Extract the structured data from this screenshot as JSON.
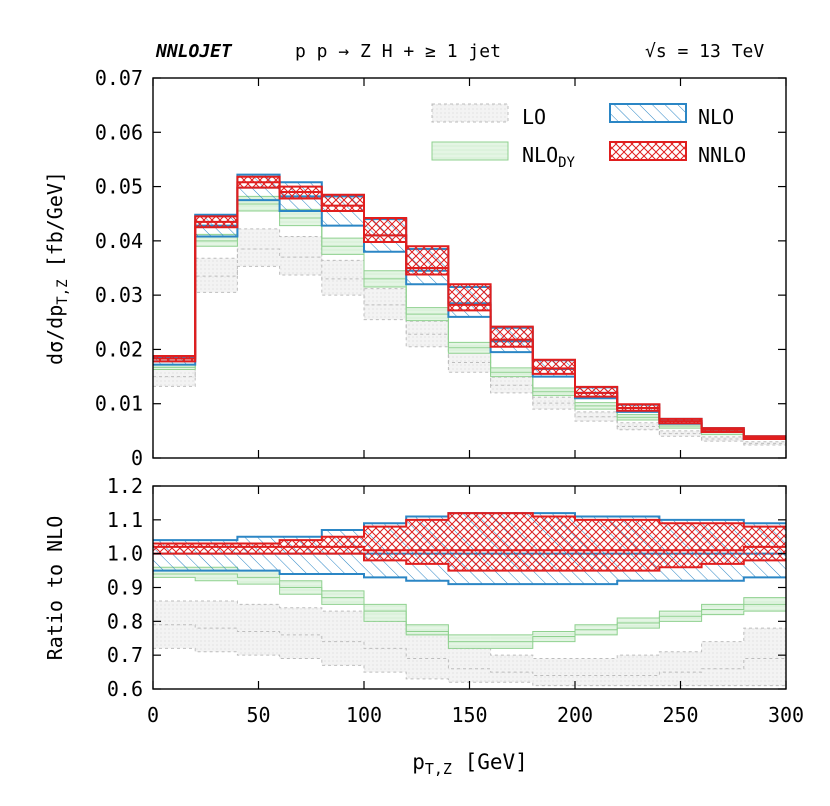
{
  "header": {
    "brand": "NNLOJET",
    "process": "p p → Z H + ≥ 1 jet",
    "energy": "√s = 13 TeV"
  },
  "colors": {
    "LO": "#bdbdbd",
    "LO_fill": "#f0f0f0",
    "NLO_DY": "#8fd18f",
    "NLO_DY_fill": "#e2f4e2",
    "NLO": "#2b86c5",
    "NNLO": "#e01e1e"
  },
  "chart_data": [
    {
      "type": "area",
      "name": "main",
      "xlabel_main": "p",
      "xlabel_sub": "T,Z",
      "xlabel_unit": "[GeV]",
      "ylabel_main": "dσ/dp",
      "ylabel_sub": "T,Z",
      "ylabel_unit": "[fb/GeV]",
      "xlim": [
        0,
        300
      ],
      "ylim": [
        0,
        0.07
      ],
      "xticks": [
        "0",
        "50",
        "100",
        "150",
        "200",
        "250",
        "300"
      ],
      "yticks": [
        "0",
        "0.01",
        "0.02",
        "0.03",
        "0.04",
        "0.05",
        "0.06",
        "0.07"
      ],
      "legend_position": "top-right",
      "legend": [
        {
          "key": "LO",
          "label": "LO"
        },
        {
          "key": "NLO",
          "label": "NLO"
        },
        {
          "key": "NLO_DY",
          "label": "NLO",
          "sub": "DY"
        },
        {
          "key": "NNLO",
          "label": "NNLO"
        }
      ],
      "bin_edges": [
        0,
        20,
        40,
        60,
        80,
        100,
        120,
        140,
        160,
        180,
        200,
        220,
        240,
        260,
        280,
        300
      ],
      "series": [
        {
          "name": "LO",
          "low": [
            0.0132,
            0.0305,
            0.0353,
            0.0337,
            0.03,
            0.0255,
            0.0205,
            0.0158,
            0.012,
            0.009,
            0.0068,
            0.0052,
            0.004,
            0.0031,
            0.0024
          ],
          "mid": [
            0.015,
            0.0335,
            0.0385,
            0.037,
            0.033,
            0.0282,
            0.0228,
            0.0176,
            0.0134,
            0.0101,
            0.0076,
            0.0058,
            0.0045,
            0.0035,
            0.0027
          ],
          "high": [
            0.017,
            0.0368,
            0.0422,
            0.0408,
            0.0364,
            0.0312,
            0.0252,
            0.0195,
            0.0149,
            0.0112,
            0.0085,
            0.0065,
            0.005,
            0.0039,
            0.003
          ]
        },
        {
          "name": "NLO_DY",
          "low": [
            0.0163,
            0.039,
            0.0455,
            0.0428,
            0.0375,
            0.0315,
            0.0253,
            0.0193,
            0.015,
            0.0115,
            0.009,
            0.007,
            0.0055,
            0.0043,
            0.0034
          ],
          "mid": [
            0.0167,
            0.04,
            0.0468,
            0.0442,
            0.039,
            0.033,
            0.0265,
            0.0203,
            0.0158,
            0.0122,
            0.0096,
            0.0075,
            0.0059,
            0.0047,
            0.0037
          ],
          "high": [
            0.0172,
            0.0412,
            0.0482,
            0.0458,
            0.0405,
            0.0345,
            0.0277,
            0.0213,
            0.0166,
            0.0129,
            0.0102,
            0.008,
            0.0063,
            0.005,
            0.004
          ]
        },
        {
          "name": "NLO",
          "low": [
            0.0172,
            0.0408,
            0.0475,
            0.0455,
            0.0428,
            0.038,
            0.032,
            0.026,
            0.0195,
            0.015,
            0.011,
            0.0085,
            0.0063,
            0.0048,
            0.0035
          ],
          "mid": [
            0.0178,
            0.0428,
            0.0498,
            0.0482,
            0.0455,
            0.041,
            0.0345,
            0.0285,
            0.0215,
            0.0164,
            0.012,
            0.0092,
            0.0068,
            0.0052,
            0.0037
          ],
          "high": [
            0.0185,
            0.0448,
            0.0522,
            0.0508,
            0.0482,
            0.044,
            0.0385,
            0.0315,
            0.024,
            0.018,
            0.013,
            0.0098,
            0.0072,
            0.0055,
            0.004
          ]
        },
        {
          "name": "NNLO",
          "low": [
            0.0178,
            0.0425,
            0.0498,
            0.0478,
            0.0455,
            0.0398,
            0.0338,
            0.0272,
            0.0205,
            0.0155,
            0.0113,
            0.0087,
            0.0064,
            0.0048,
            0.0035
          ],
          "mid": [
            0.0183,
            0.0435,
            0.0508,
            0.049,
            0.0465,
            0.041,
            0.035,
            0.0282,
            0.0218,
            0.0165,
            0.012,
            0.0092,
            0.0068,
            0.0052,
            0.0038
          ],
          "high": [
            0.0188,
            0.0445,
            0.0518,
            0.05,
            0.0485,
            0.0442,
            0.039,
            0.032,
            0.0242,
            0.0181,
            0.0131,
            0.0099,
            0.0072,
            0.0055,
            0.004
          ]
        }
      ]
    },
    {
      "type": "area",
      "name": "ratio",
      "ylabel": "Ratio to NLO",
      "xlim": [
        0,
        300
      ],
      "ylim": [
        0.6,
        1.2
      ],
      "xticks": [
        "0",
        "50",
        "100",
        "150",
        "200",
        "250",
        "300"
      ],
      "yticks": [
        "0.6",
        "0.7",
        "0.8",
        "0.9",
        "1.0",
        "1.1",
        "1.2"
      ],
      "bin_edges": [
        0,
        20,
        40,
        60,
        80,
        100,
        120,
        140,
        160,
        180,
        200,
        220,
        240,
        260,
        280,
        300
      ],
      "series": [
        {
          "name": "LO",
          "low": [
            0.72,
            0.71,
            0.7,
            0.69,
            0.67,
            0.65,
            0.63,
            0.62,
            0.62,
            0.61,
            0.61,
            0.61,
            0.61,
            0.61,
            0.61
          ],
          "mid": [
            0.79,
            0.78,
            0.77,
            0.76,
            0.74,
            0.72,
            0.69,
            0.66,
            0.65,
            0.64,
            0.64,
            0.64,
            0.65,
            0.66,
            0.69
          ],
          "high": [
            0.86,
            0.86,
            0.85,
            0.84,
            0.83,
            0.8,
            0.77,
            0.72,
            0.7,
            0.69,
            0.69,
            0.7,
            0.71,
            0.74,
            0.78
          ]
        },
        {
          "name": "NLO_DY",
          "low": [
            0.93,
            0.92,
            0.91,
            0.88,
            0.85,
            0.8,
            0.76,
            0.72,
            0.72,
            0.74,
            0.76,
            0.78,
            0.8,
            0.82,
            0.83
          ],
          "mid": [
            0.94,
            0.94,
            0.93,
            0.9,
            0.87,
            0.83,
            0.77,
            0.74,
            0.74,
            0.755,
            0.775,
            0.795,
            0.815,
            0.835,
            0.85
          ],
          "high": [
            0.96,
            0.96,
            0.95,
            0.92,
            0.89,
            0.85,
            0.79,
            0.76,
            0.76,
            0.77,
            0.79,
            0.81,
            0.83,
            0.85,
            0.87
          ]
        },
        {
          "name": "NLO",
          "low": [
            0.95,
            0.95,
            0.95,
            0.94,
            0.94,
            0.93,
            0.92,
            0.91,
            0.91,
            0.91,
            0.91,
            0.92,
            0.92,
            0.92,
            0.93
          ],
          "mid": [
            1.0,
            1.0,
            1.0,
            1.0,
            1.0,
            1.0,
            1.0,
            1.0,
            1.0,
            1.0,
            1.0,
            1.0,
            1.0,
            1.0,
            1.0
          ],
          "high": [
            1.04,
            1.04,
            1.05,
            1.05,
            1.07,
            1.09,
            1.11,
            1.12,
            1.12,
            1.12,
            1.11,
            1.11,
            1.1,
            1.1,
            1.09
          ]
        },
        {
          "name": "NNLO",
          "low": [
            1.0,
            1.0,
            1.0,
            1.0,
            1.0,
            0.98,
            0.97,
            0.95,
            0.95,
            0.95,
            0.95,
            0.95,
            0.96,
            0.97,
            0.98
          ],
          "mid": [
            1.02,
            1.02,
            1.02,
            1.02,
            1.02,
            1.01,
            1.01,
            1.01,
            1.01,
            1.01,
            1.01,
            1.01,
            1.01,
            1.01,
            1.02
          ],
          "high": [
            1.03,
            1.03,
            1.03,
            1.04,
            1.05,
            1.08,
            1.1,
            1.12,
            1.12,
            1.11,
            1.1,
            1.1,
            1.09,
            1.09,
            1.08
          ]
        }
      ]
    }
  ]
}
